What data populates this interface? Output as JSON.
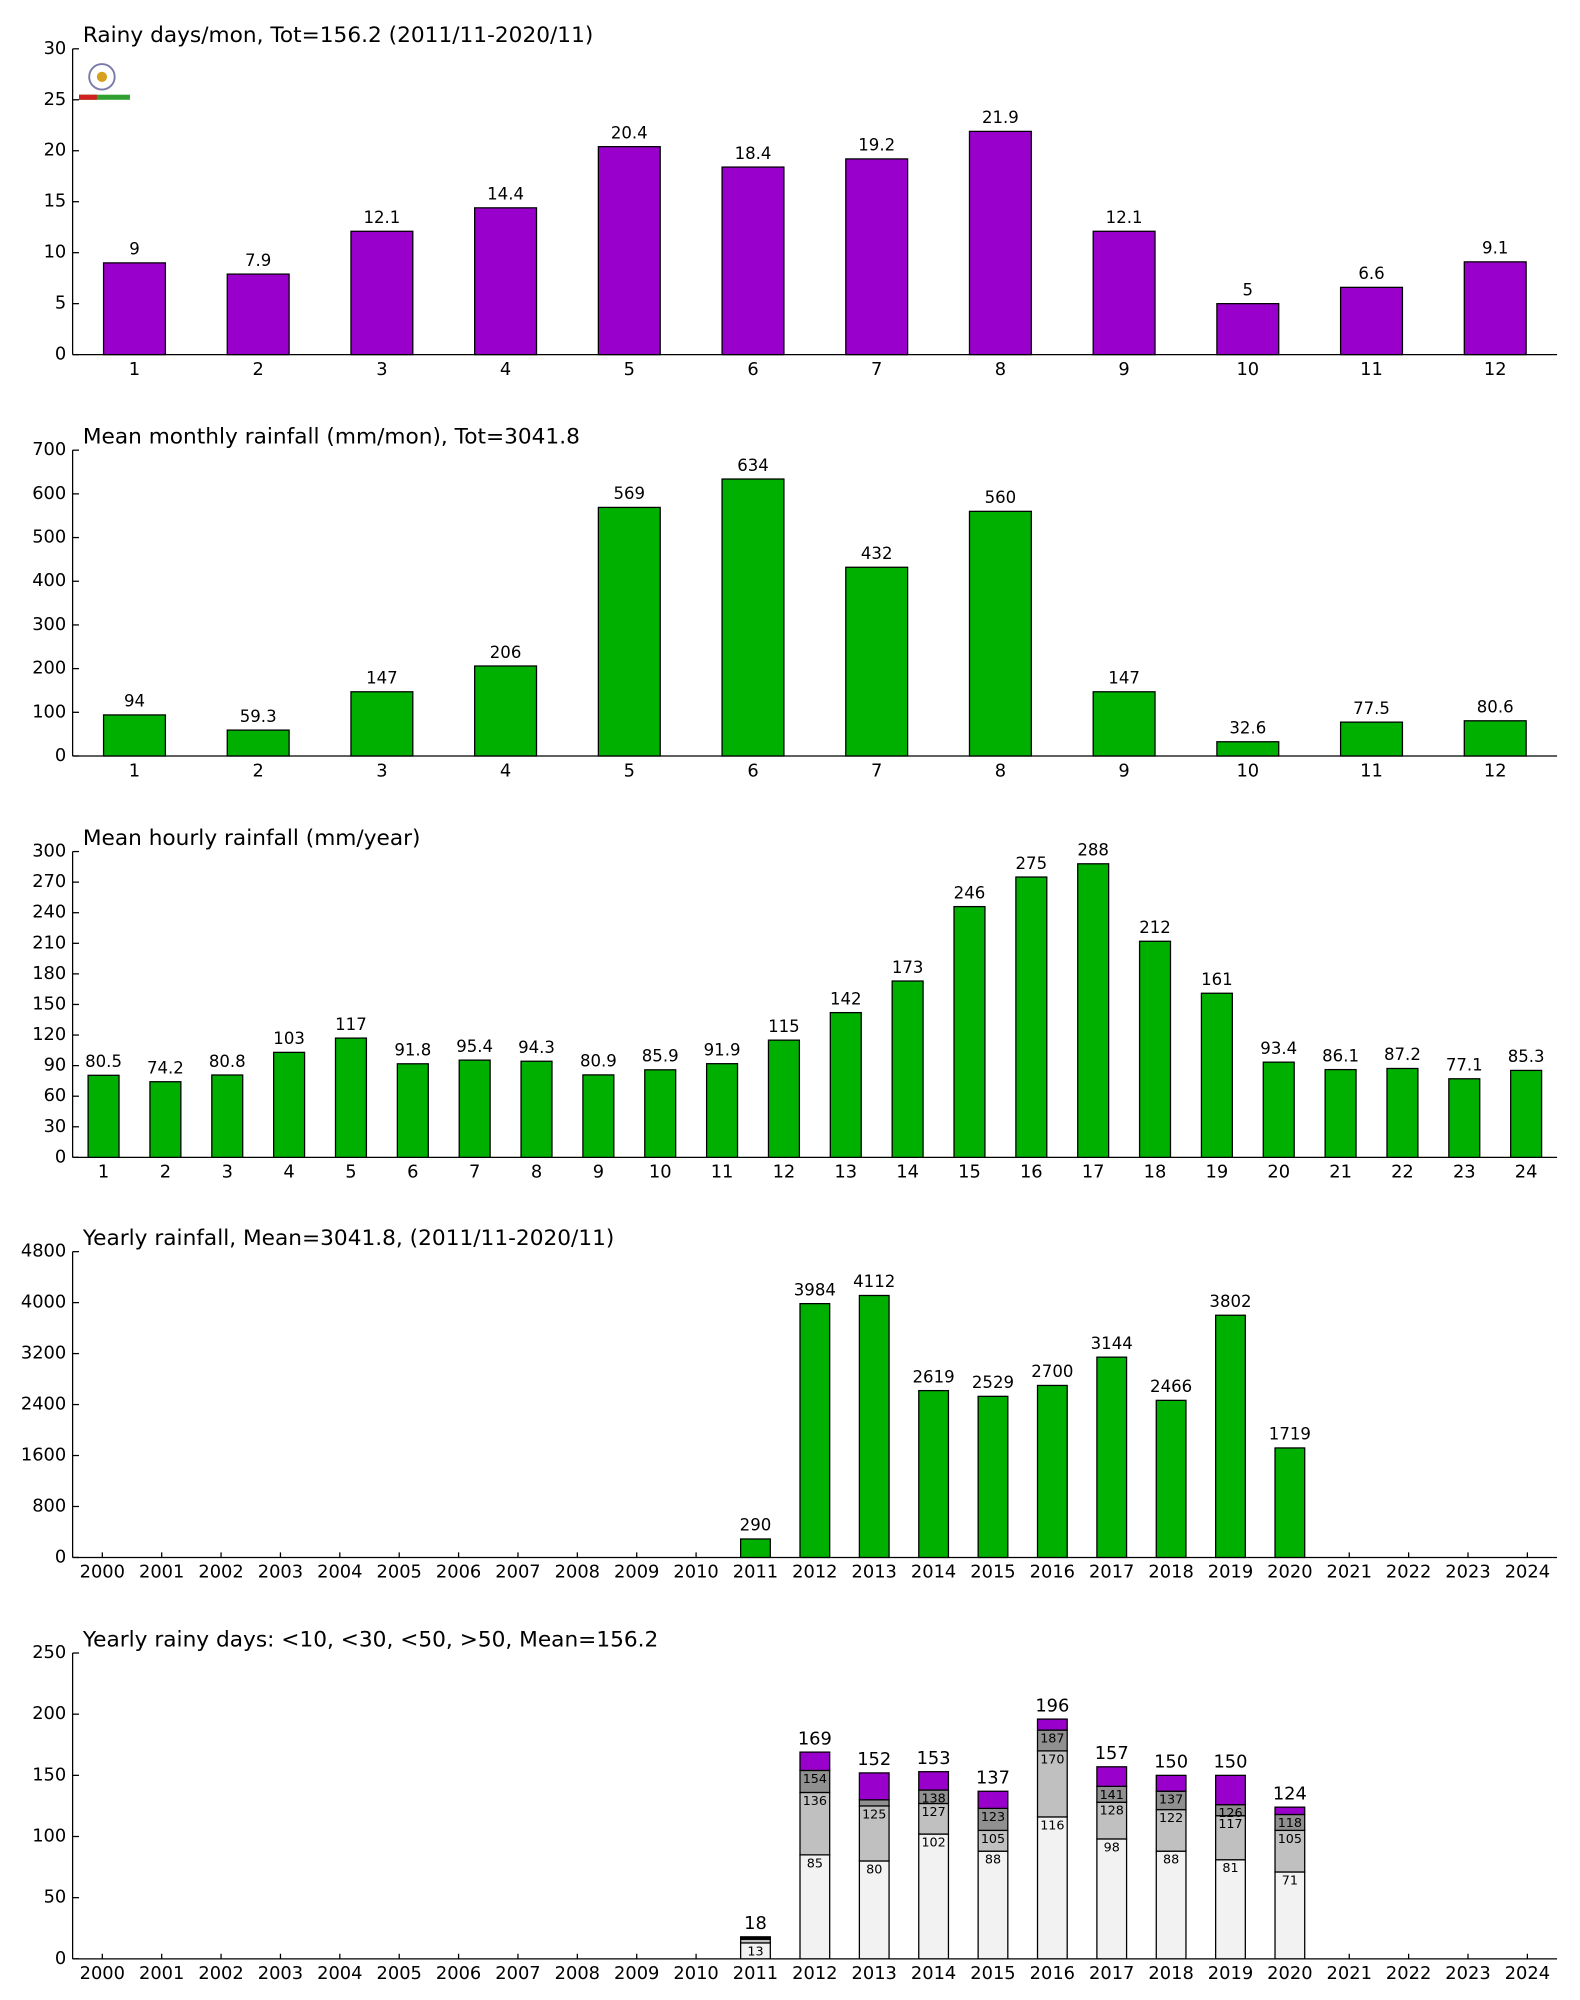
{
  "chart_data": [
    {
      "type": "bar",
      "title": "Rainy days/mon, Tot=156.2 (2011/11-2020/11)",
      "categories": [
        "1",
        "2",
        "3",
        "4",
        "5",
        "6",
        "7",
        "8",
        "9",
        "10",
        "11",
        "12"
      ],
      "values": [
        9,
        7.9,
        12.1,
        14.4,
        20.4,
        18.4,
        19.2,
        21.9,
        12.1,
        5,
        6.6,
        9.1
      ],
      "color": "#9900cc",
      "ylim": [
        0,
        30
      ],
      "yticks": [
        0,
        5,
        10,
        15,
        20,
        25,
        30
      ]
    },
    {
      "type": "bar",
      "title": "Mean monthly rainfall (mm/mon), Tot=3041.8",
      "categories": [
        "1",
        "2",
        "3",
        "4",
        "5",
        "6",
        "7",
        "8",
        "9",
        "10",
        "11",
        "12"
      ],
      "values": [
        94,
        59.3,
        147,
        206,
        569,
        634,
        432,
        560,
        147,
        32.6,
        77.5,
        80.6
      ],
      "color": "#00b000",
      "ylim": [
        0,
        700
      ],
      "yticks": [
        0,
        100,
        200,
        300,
        400,
        500,
        600,
        700
      ]
    },
    {
      "type": "bar",
      "title": "Mean hourly rainfall (mm/year)",
      "categories": [
        "1",
        "2",
        "3",
        "4",
        "5",
        "6",
        "7",
        "8",
        "9",
        "10",
        "11",
        "12",
        "13",
        "14",
        "15",
        "16",
        "17",
        "18",
        "19",
        "20",
        "21",
        "22",
        "23",
        "24"
      ],
      "values": [
        80.5,
        74.2,
        80.8,
        103,
        117,
        91.8,
        95.4,
        94.3,
        80.9,
        85.9,
        91.9,
        115,
        142,
        173,
        246,
        275,
        288,
        212,
        161,
        93.4,
        86.1,
        87.2,
        77.1,
        85.3
      ],
      "color": "#00b000",
      "ylim": [
        0,
        300
      ],
      "yticks": [
        0,
        30,
        60,
        90,
        120,
        150,
        180,
        210,
        240,
        270,
        300
      ]
    },
    {
      "type": "bar",
      "title": "Yearly rainfall, Mean=3041.8, (2011/11-2020/11)",
      "categories": [
        "2000",
        "2001",
        "2002",
        "2003",
        "2004",
        "2005",
        "2006",
        "2007",
        "2008",
        "2009",
        "2010",
        "2011",
        "2012",
        "2013",
        "2014",
        "2015",
        "2016",
        "2017",
        "2018",
        "2019",
        "2020",
        "2021",
        "2022",
        "2023",
        "2024"
      ],
      "values": [
        null,
        null,
        null,
        null,
        null,
        null,
        null,
        null,
        null,
        null,
        null,
        290,
        3984,
        4112,
        2619,
        2529,
        2700,
        3144,
        2466,
        3802,
        1719,
        null,
        null,
        null,
        null
      ],
      "color": "#00b000",
      "ylim": [
        0,
        4800
      ],
      "yticks": [
        0,
        800,
        1600,
        2400,
        3200,
        4000,
        4800
      ]
    },
    {
      "type": "stacked_bar",
      "title": "Yearly rainy days: <10, <30, <50, >50, Mean=156.2",
      "categories": [
        "2000",
        "2001",
        "2002",
        "2003",
        "2004",
        "2005",
        "2006",
        "2007",
        "2008",
        "2009",
        "2010",
        "2011",
        "2012",
        "2013",
        "2014",
        "2015",
        "2016",
        "2017",
        "2018",
        "2019",
        "2020",
        "2021",
        "2022",
        "2023",
        "2024"
      ],
      "series": [
        {
          "color": "#f2f2f2",
          "values": [
            null,
            null,
            null,
            null,
            null,
            null,
            null,
            null,
            null,
            null,
            null,
            13,
            85,
            80,
            102,
            88,
            116,
            98,
            88,
            81,
            71,
            null,
            null,
            null,
            null
          ],
          "stack_labels": [
            null,
            null,
            null,
            null,
            null,
            null,
            null,
            null,
            null,
            null,
            null,
            "13",
            "85",
            "80",
            "102",
            "88",
            "116",
            "98",
            "88",
            "81",
            "71",
            null,
            null,
            null,
            null
          ]
        },
        {
          "color": "#c0c0c0",
          "values": [
            null,
            null,
            null,
            null,
            null,
            null,
            null,
            null,
            null,
            null,
            null,
            3,
            51,
            45,
            25,
            17,
            54,
            30,
            34,
            36,
            34,
            null,
            null,
            null,
            null
          ],
          "stack_labels": [
            null,
            null,
            null,
            null,
            null,
            null,
            null,
            null,
            null,
            null,
            null,
            null,
            "136",
            "125",
            "127",
            "105",
            "170",
            "128",
            "122",
            "117",
            "105",
            null,
            null,
            null,
            null
          ]
        },
        {
          "color": "#909090",
          "values": [
            null,
            null,
            null,
            null,
            null,
            null,
            null,
            null,
            null,
            null,
            null,
            1,
            18,
            5,
            11,
            18,
            17,
            13,
            15,
            9,
            13,
            null,
            null,
            null,
            null
          ],
          "stack_labels": [
            null,
            null,
            null,
            null,
            null,
            null,
            null,
            null,
            null,
            null,
            null,
            null,
            "154",
            null,
            "138",
            "123",
            "187",
            "141",
            "137",
            "126",
            "118",
            null,
            null,
            null,
            null
          ]
        },
        {
          "color": "#9900cc",
          "values": [
            null,
            null,
            null,
            null,
            null,
            null,
            null,
            null,
            null,
            null,
            null,
            1,
            15,
            22,
            15,
            14,
            9,
            16,
            13,
            24,
            6,
            null,
            null,
            null,
            null
          ],
          "stack_labels": [
            null,
            null,
            null,
            null,
            null,
            null,
            null,
            null,
            null,
            null,
            null,
            "18",
            "169",
            "152",
            "153",
            "137",
            "196",
            "157",
            "150",
            "150",
            "124",
            null,
            null,
            null,
            null
          ]
        }
      ],
      "ylim": [
        0,
        250
      ],
      "yticks": [
        0,
        50,
        100,
        150,
        200,
        250
      ]
    }
  ]
}
